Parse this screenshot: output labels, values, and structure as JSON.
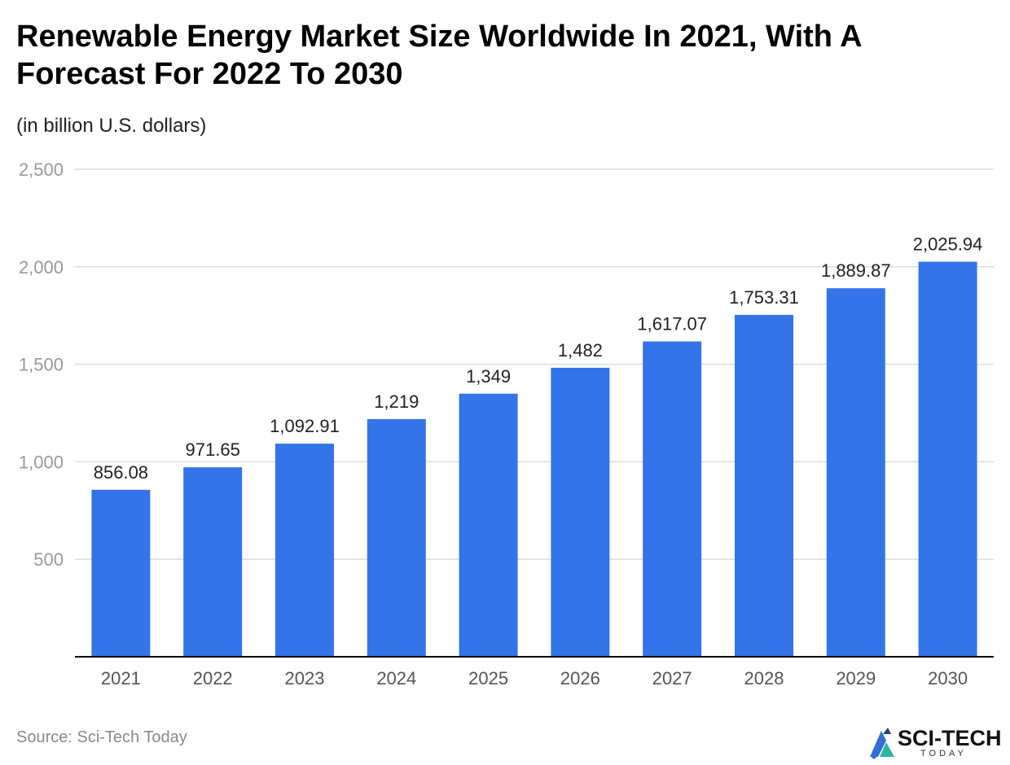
{
  "header": {
    "title": "Renewable Energy Market Size Worldwide In 2021, With A Forecast For 2022 To 2030",
    "subtitle": "(in billion U.S. dollars)"
  },
  "footer": {
    "source": "Source: Sci-Tech Today",
    "logo_text": "SCI-TECH",
    "logo_sub": "TODAY"
  },
  "colors": {
    "bar": "#3374E8",
    "grid": "#dddddd",
    "axis": "#000000",
    "tick_label": "#999999",
    "category_label": "#555555",
    "data_label": "#222222"
  },
  "chart_data": {
    "type": "bar",
    "title": "Renewable Energy Market Size Worldwide In 2021, With A Forecast For 2022 To 2030",
    "subtitle": "(in billion U.S. dollars)",
    "xlabel": "",
    "ylabel": "",
    "ylim": [
      0,
      2500
    ],
    "yticks": [
      500,
      1000,
      1500,
      2000,
      2500
    ],
    "ytick_labels": [
      "500",
      "1,000",
      "1,500",
      "2,000",
      "2,500"
    ],
    "grid": true,
    "legend": "none",
    "categories": [
      "2021",
      "2022",
      "2023",
      "2024",
      "2025",
      "2026",
      "2027",
      "2028",
      "2029",
      "2030"
    ],
    "values": [
      856.08,
      971.65,
      1092.91,
      1219,
      1349,
      1482,
      1617.07,
      1753.31,
      1889.87,
      2025.94
    ],
    "value_labels": [
      "856.08",
      "971.65",
      "1,092.91",
      "1,219",
      "1,349",
      "1,482",
      "1,617.07",
      "1,753.31",
      "1,889.87",
      "2,025.94"
    ]
  }
}
